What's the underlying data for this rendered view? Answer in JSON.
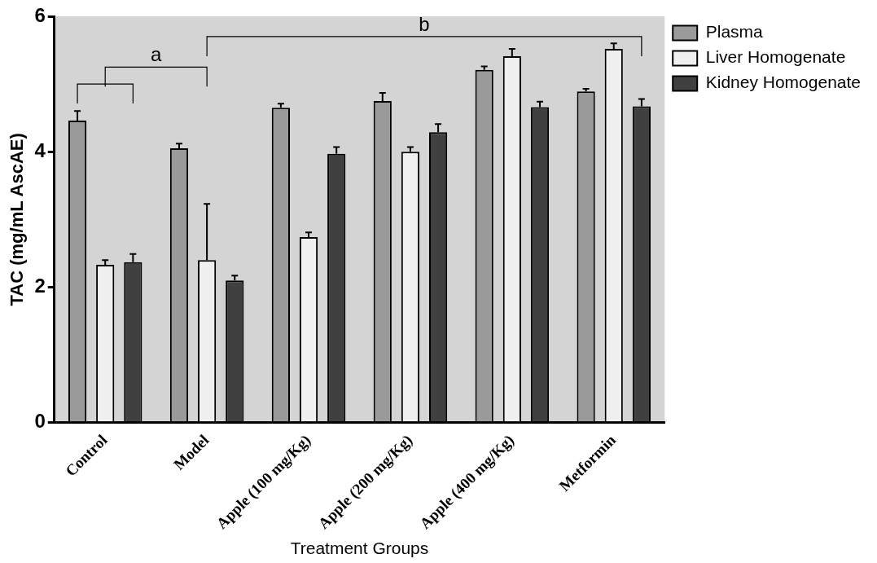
{
  "chart_data": {
    "type": "bar",
    "xlabel": "Treatment Groups",
    "ylabel": "TAC (mg/mL AscAE)",
    "categories": [
      "Control",
      "Model",
      "Apple (100 mg/Kg)",
      "Apple (200 mg/Kg)",
      "Apple (400 mg/Kg)",
      "Metformin"
    ],
    "series": [
      {
        "name": "Plasma",
        "color": "#9a9a9a",
        "values": [
          4.46,
          4.05,
          4.65,
          4.75,
          5.21,
          4.89
        ],
        "errors": [
          [
            4.46,
            4.6
          ],
          [
            4.05,
            4.12
          ],
          [
            4.65,
            4.71
          ],
          [
            4.75,
            4.87
          ],
          [
            5.21,
            5.26
          ],
          [
            4.89,
            4.93
          ]
        ]
      },
      {
        "name": "Liver Homogenate",
        "color": "#f0f0f0",
        "values": [
          2.33,
          2.4,
          2.74,
          4.0,
          5.41,
          5.52
        ],
        "errors": [
          [
            2.33,
            2.4
          ],
          [
            2.4,
            3.23
          ],
          [
            2.74,
            2.81
          ],
          [
            4.0,
            4.07
          ],
          [
            5.41,
            5.52
          ],
          [
            5.52,
            5.6
          ]
        ]
      },
      {
        "name": "Kidney Homogenate",
        "color": "#404040",
        "values": [
          2.37,
          2.1,
          3.97,
          4.29,
          4.66,
          4.67
        ],
        "errors": [
          [
            2.37,
            2.49
          ],
          [
            2.1,
            2.17
          ],
          [
            3.97,
            4.07
          ],
          [
            4.29,
            4.41
          ],
          [
            4.66,
            4.74
          ],
          [
            4.67,
            4.78
          ]
        ]
      }
    ],
    "ylim": [
      0,
      6
    ],
    "yticks": [
      0,
      2,
      4,
      6
    ],
    "grid": false,
    "legend": "top right",
    "annotations": [
      "a",
      "b"
    ]
  }
}
